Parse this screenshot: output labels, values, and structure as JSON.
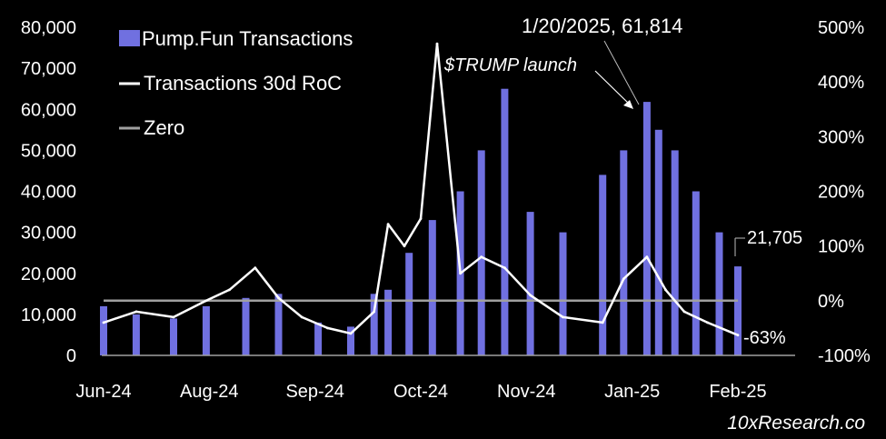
{
  "chart_data": {
    "type": "bar+line",
    "title": "",
    "xlabel": "",
    "ylabel_left": "",
    "ylabel_right": "",
    "ylim_left": [
      0,
      80000
    ],
    "ylim_right": [
      -100,
      500
    ],
    "left_ticks": [
      "0",
      "10,000",
      "20,000",
      "30,000",
      "40,000",
      "50,000",
      "60,000",
      "70,000",
      "80,000"
    ],
    "right_ticks": [
      "-100%",
      "0%",
      "100%",
      "200%",
      "300%",
      "400%",
      "500%"
    ],
    "x_ticks": [
      "Jun-24",
      "Aug-24",
      "Sep-24",
      "Oct-24",
      "Nov-24",
      "Jan-25",
      "Feb-25"
    ],
    "x_range": [
      "2024-06-01",
      "2025-02-28"
    ],
    "grid": false,
    "legend_position": "top-left",
    "series": [
      {
        "name": "Pump.Fun Transactions",
        "kind": "bar",
        "axis": "left",
        "color": "#7070e0",
        "x": [
          "2024-06-01",
          "2024-06-15",
          "2024-07-01",
          "2024-07-15",
          "2024-08-01",
          "2024-08-15",
          "2024-09-01",
          "2024-09-15",
          "2024-09-25",
          "2024-10-01",
          "2024-10-10",
          "2024-10-20",
          "2024-11-01",
          "2024-11-10",
          "2024-11-20",
          "2024-12-01",
          "2024-12-15",
          "2025-01-01",
          "2025-01-10",
          "2025-01-20",
          "2025-01-25",
          "2025-02-01",
          "2025-02-10",
          "2025-02-20",
          "2025-02-28"
        ],
        "values": [
          12000,
          10000,
          9000,
          12000,
          14000,
          15000,
          8000,
          7000,
          15000,
          16000,
          25000,
          33000,
          40000,
          50000,
          65000,
          35000,
          30000,
          44000,
          50000,
          61814,
          55000,
          50000,
          40000,
          30000,
          21705
        ]
      },
      {
        "name": "Transactions 30d RoC",
        "kind": "line",
        "axis": "right",
        "color": "#ffffff",
        "x": [
          "2024-06-01",
          "2024-06-15",
          "2024-07-01",
          "2024-07-15",
          "2024-07-25",
          "2024-08-05",
          "2024-08-15",
          "2024-08-25",
          "2024-09-05",
          "2024-09-15",
          "2024-09-25",
          "2024-10-01",
          "2024-10-08",
          "2024-10-15",
          "2024-10-22",
          "2024-11-01",
          "2024-11-10",
          "2024-11-20",
          "2024-12-01",
          "2024-12-15",
          "2025-01-01",
          "2025-01-10",
          "2025-01-20",
          "2025-01-28",
          "2025-02-05",
          "2025-02-15",
          "2025-02-28"
        ],
        "values": [
          -40,
          -20,
          -30,
          0,
          20,
          60,
          5,
          -30,
          -50,
          -60,
          -20,
          140,
          100,
          150,
          470,
          50,
          80,
          60,
          10,
          -30,
          -40,
          40,
          80,
          20,
          -20,
          -40,
          -63
        ]
      },
      {
        "name": "Zero",
        "kind": "line",
        "axis": "right",
        "color": "#a0a0a0",
        "values": [
          0
        ]
      }
    ],
    "annotations": [
      {
        "text": "1/20/2025, 61,814",
        "style": "normal"
      },
      {
        "text": "$TRUMP launch",
        "style": "italic"
      }
    ],
    "end_labels": {
      "bars": "21,705",
      "line": "-63%"
    }
  },
  "footer": "10xResearch.co"
}
